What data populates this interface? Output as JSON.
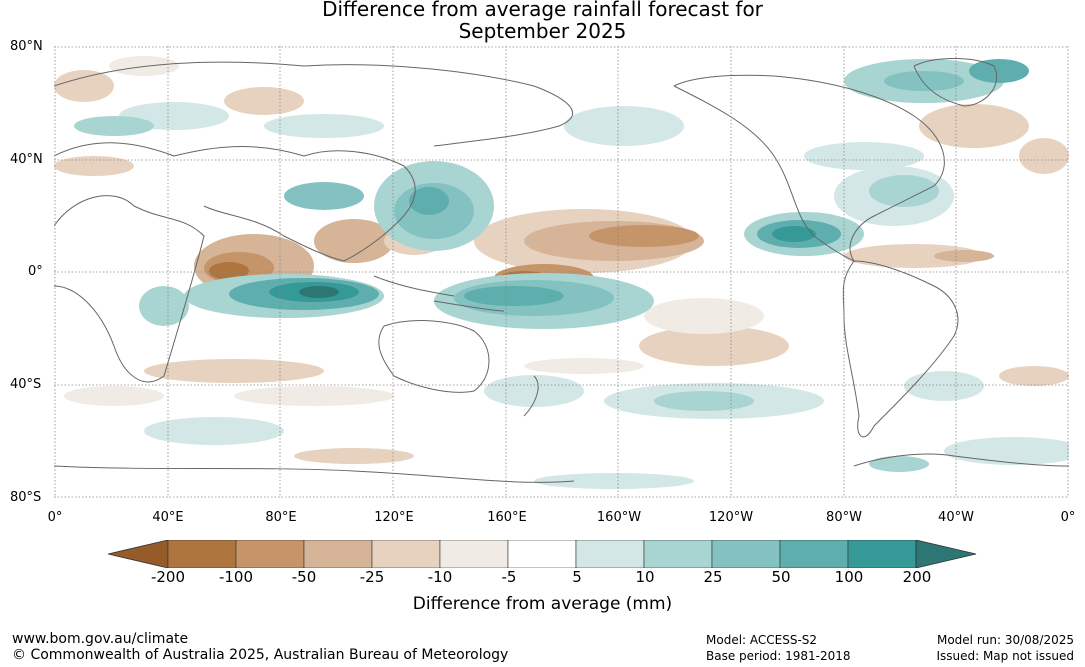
{
  "title": {
    "line1": "Difference from average rainfall forecast for",
    "line2": "September 2025"
  },
  "map": {
    "lat_labels": [
      "80°N",
      "40°N",
      "0°",
      "40°S",
      "80°S"
    ],
    "lon_labels": [
      "0°",
      "40°E",
      "80°E",
      "120°E",
      "160°E",
      "160°W",
      "120°W",
      "80°W",
      "40°W",
      "0°"
    ]
  },
  "legend": {
    "tick_labels": [
      "-200",
      "-100",
      "-50",
      "-25",
      "-10",
      "-5",
      "5",
      "10",
      "25",
      "50",
      "100",
      "200"
    ],
    "colors": [
      "#955b29",
      "#af753f",
      "#c59469",
      "#d5b497",
      "#e7d2c0",
      "#f1ebe6",
      "#ffffff",
      "#d2e7e6",
      "#a8d4d2",
      "#83c2c1",
      "#5eaeae",
      "#349997",
      "#2c7673"
    ],
    "label": "Difference from average (mm)"
  },
  "footer": {
    "website": "www.bom.gov.au/climate",
    "copyright": "© Commonwealth of Australia 2025, Australian Bureau of Meteorology",
    "model": "Model: ACCESS-S2",
    "base_period": "Base period: 1981-2018",
    "model_run": "Model run: 30/08/2025",
    "issued": "Issued: Map not issued"
  }
}
